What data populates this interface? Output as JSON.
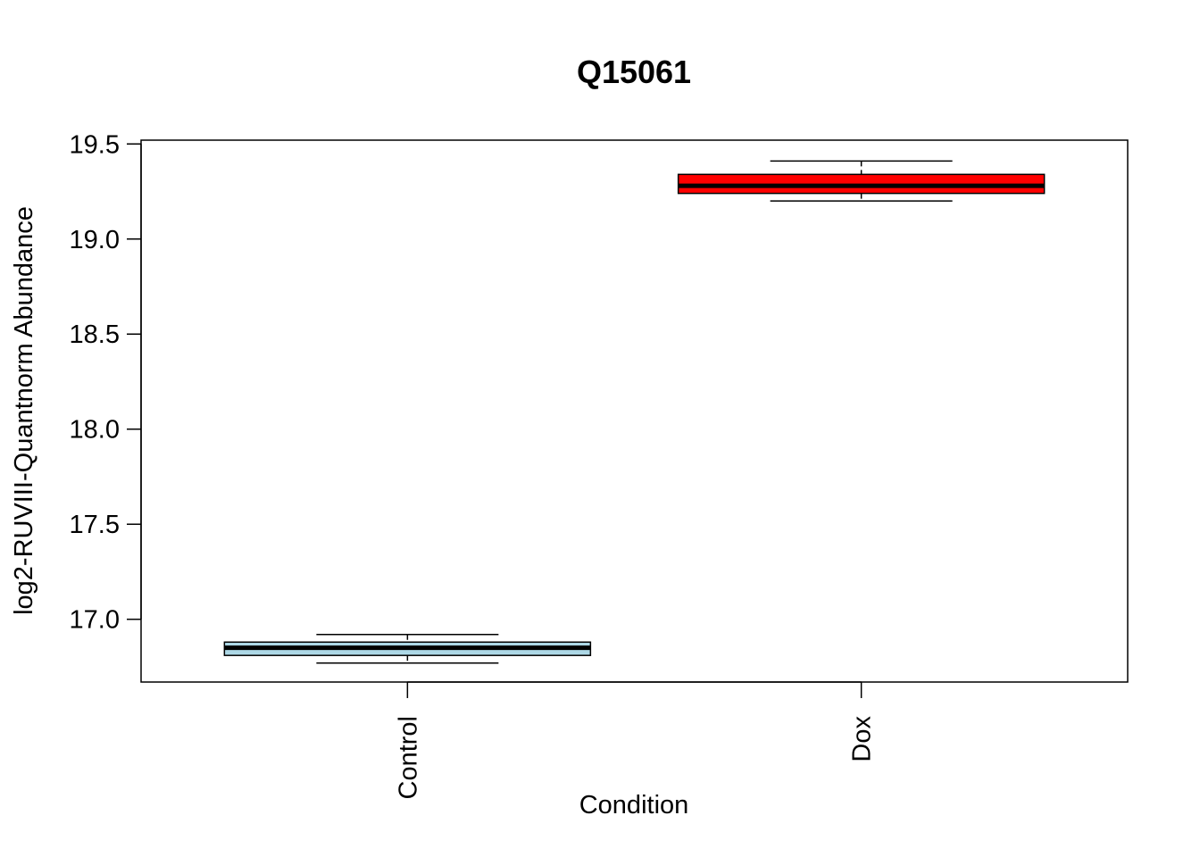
{
  "chart_data": {
    "type": "boxplot",
    "title": "Q15061",
    "xlabel": "Condition",
    "ylabel": "log2-RUVIII-Quantnorm Abundance",
    "ylim": [
      16.67,
      19.52
    ],
    "yticks": [
      "17.0",
      "17.5",
      "18.0",
      "18.5",
      "19.0",
      "19.5"
    ],
    "grid": false,
    "categories": [
      "Control",
      "Dox"
    ],
    "boxes": [
      {
        "category": "Control",
        "whisker_low": 16.77,
        "q1": 16.81,
        "median": 16.85,
        "q3": 16.88,
        "whisker_high": 16.92,
        "color": "#add8e6"
      },
      {
        "category": "Dox",
        "whisker_low": 19.2,
        "q1": 19.24,
        "median": 19.28,
        "q3": 19.34,
        "whisker_high": 19.41,
        "color": "#ff0000"
      }
    ]
  }
}
